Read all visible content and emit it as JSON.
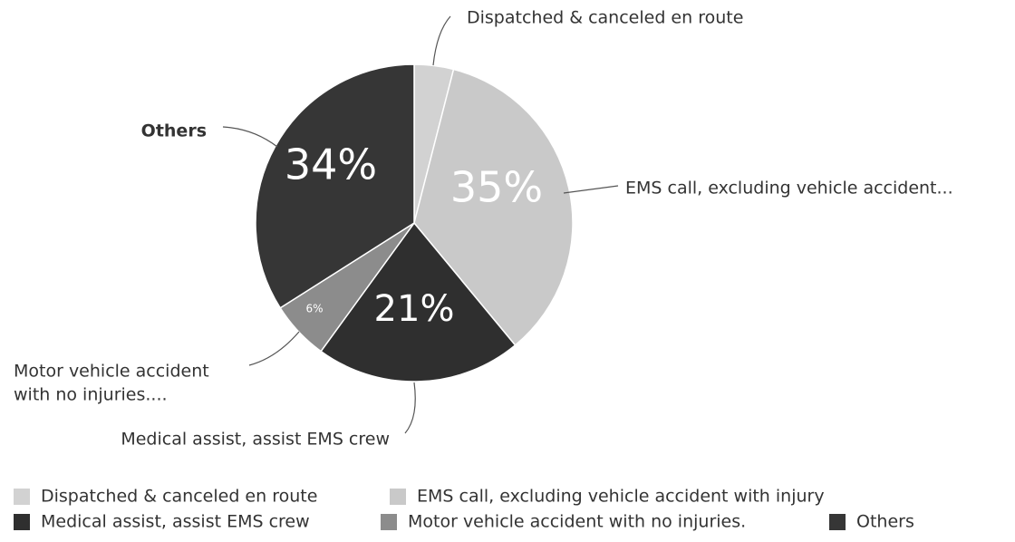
{
  "chart_data": {
    "type": "pie",
    "categories": [
      "Dispatched & canceled en route",
      "EMS call, excluding vehicle accident with injury",
      "Medical assist, assist EMS crew",
      "Motor vehicle accident with no injuries.",
      "Others"
    ],
    "values": [
      4,
      35,
      21,
      6,
      34
    ],
    "value_labels": [
      null,
      "35%",
      "21%",
      "6%",
      "34%"
    ],
    "colors": [
      "#d2d2d2",
      "#c9c9c9",
      "#2f2f2f",
      "#8c8c8c",
      "#363636"
    ],
    "callout_labels": [
      [
        "Dispatched & canceled en route"
      ],
      [
        "EMS call, excluding vehicle accident..."
      ],
      [
        "Medical assist, assist EMS crew"
      ],
      [
        "Motor vehicle accident",
        "with no injuries...."
      ],
      [
        "Others"
      ]
    ],
    "legend": true
  }
}
